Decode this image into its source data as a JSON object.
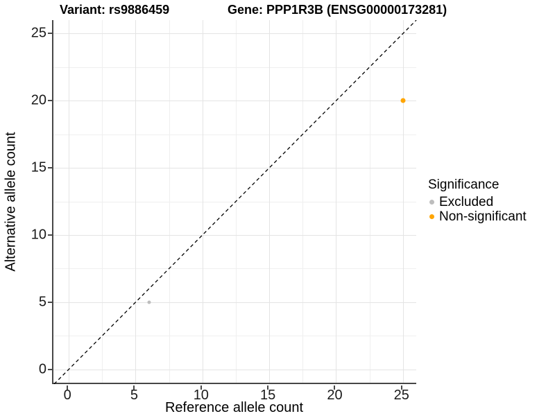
{
  "figure": {
    "title_left": "Variant: rs9886459",
    "title_right": "Gene: PPP1R3B (ENSG00000173281)"
  },
  "chart_data": {
    "type": "scatter",
    "title": "Variant: rs9886459          Gene: PPP1R3B (ENSG00000173281)",
    "xlabel": "Reference allele count",
    "ylabel": "Alternative allele count",
    "xlim": [
      -1.15,
      26.1
    ],
    "ylim": [
      -1.1,
      26.0
    ],
    "xticks": [
      0,
      5,
      10,
      15,
      20,
      25
    ],
    "yticks": [
      0,
      5,
      10,
      15,
      20,
      25
    ],
    "minor_gridlines_x": [
      2.5,
      7.5,
      12.5,
      17.5,
      22.5
    ],
    "minor_gridlines_y": [
      2.5,
      7.5,
      12.5,
      17.5,
      22.5
    ],
    "grid": {
      "major_color": "#e4e4e4",
      "minor_color": "#efefef",
      "grid_on": true
    },
    "identity_line": {
      "slope": 1,
      "intercept": 0,
      "style": "dashed",
      "color": "#000000"
    },
    "legend": {
      "title": "Significance",
      "position": "right"
    },
    "series": [
      {
        "name": "Excluded",
        "color": "#BDBDBD",
        "point_size": 5,
        "points": [
          [
            6,
            5
          ]
        ]
      },
      {
        "name": "Non-significant",
        "color": "#FFA500",
        "point_size": 7,
        "points": [
          [
            25,
            20
          ]
        ]
      }
    ]
  }
}
